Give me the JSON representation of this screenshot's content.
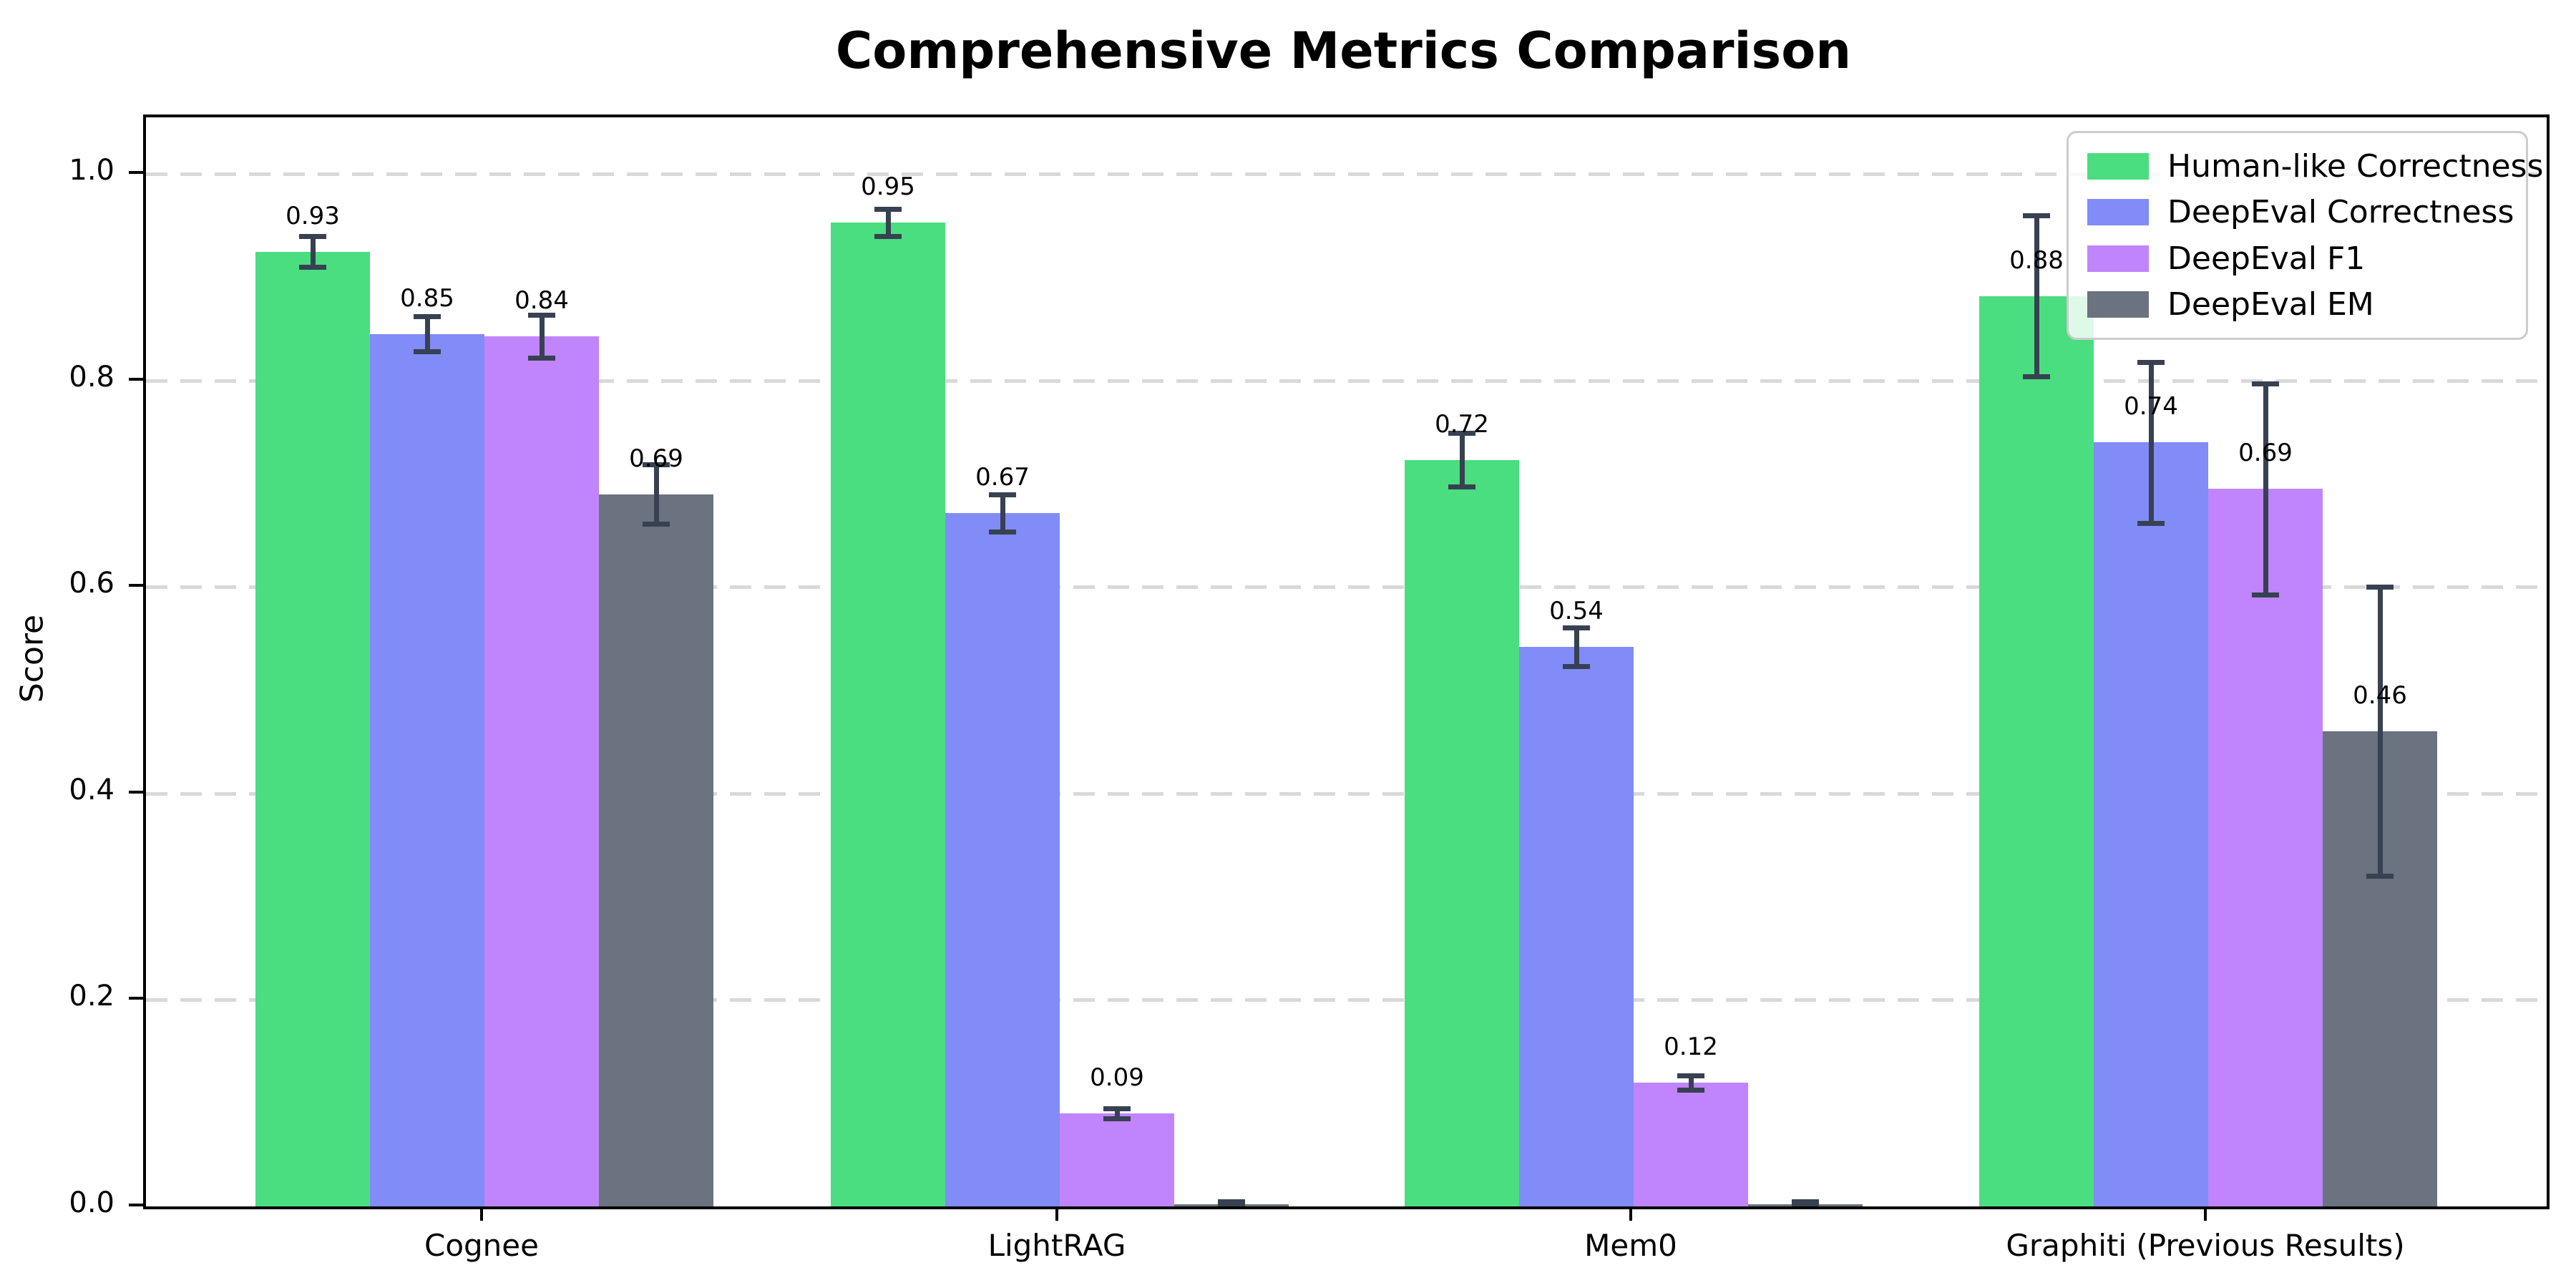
{
  "figure": {
    "title": "Comprehensive Metrics Comparison"
  },
  "chart_data": {
    "type": "bar",
    "title": "Comprehensive Metrics Comparison",
    "xlabel": "",
    "ylabel": "Score",
    "ylim": [
      0,
      1.055
    ],
    "grid": "horizontal dashed gridlines at 0.2 intervals",
    "legend_position": "upper right",
    "background_color": "#ffffff",
    "axis_color": "#000000",
    "grid_color": "#d9d9d9",
    "error_bar_color": "#374151",
    "yticks": [
      {
        "value": 0.0,
        "label": "0.0"
      },
      {
        "value": 0.2,
        "label": "0.2"
      },
      {
        "value": 0.4,
        "label": "0.4"
      },
      {
        "value": 0.6,
        "label": "0.6"
      },
      {
        "value": 0.8,
        "label": "0.8"
      },
      {
        "value": 1.0,
        "label": "1.0"
      }
    ],
    "categories": [
      "Cognee",
      "LightRAG",
      "Mem0",
      "Graphiti (Previous Results)"
    ],
    "series": [
      {
        "name": "Human-like Correctness",
        "color": "#4ade80",
        "values": [
          0.925,
          0.953,
          0.723,
          0.882
        ],
        "errors": [
          0.015,
          0.013,
          0.026,
          0.078
        ],
        "labels": [
          "0.93",
          "0.95",
          "0.72",
          "0.88"
        ]
      },
      {
        "name": "DeepEval Correctness",
        "color": "#818cf8",
        "values": [
          0.845,
          0.672,
          0.542,
          0.74
        ],
        "errors": [
          0.017,
          0.018,
          0.019,
          0.078
        ],
        "labels": [
          "0.85",
          "0.67",
          "0.54",
          "0.74"
        ]
      },
      {
        "name": "DeepEval F1",
        "color": "#c084fc",
        "values": [
          0.843,
          0.09,
          0.12,
          0.695
        ],
        "errors": [
          0.021,
          0.005,
          0.007,
          0.102
        ],
        "labels": [
          "0.84",
          "0.09",
          "0.12",
          "0.69"
        ]
      },
      {
        "name": "DeepEval EM",
        "color": "#6b7280",
        "values": [
          0.69,
          0.002,
          0.002,
          0.46
        ],
        "errors": [
          0.029,
          0.003,
          0.003,
          0.14
        ],
        "labels": [
          "0.69",
          "",
          "",
          "0.46"
        ]
      }
    ]
  }
}
